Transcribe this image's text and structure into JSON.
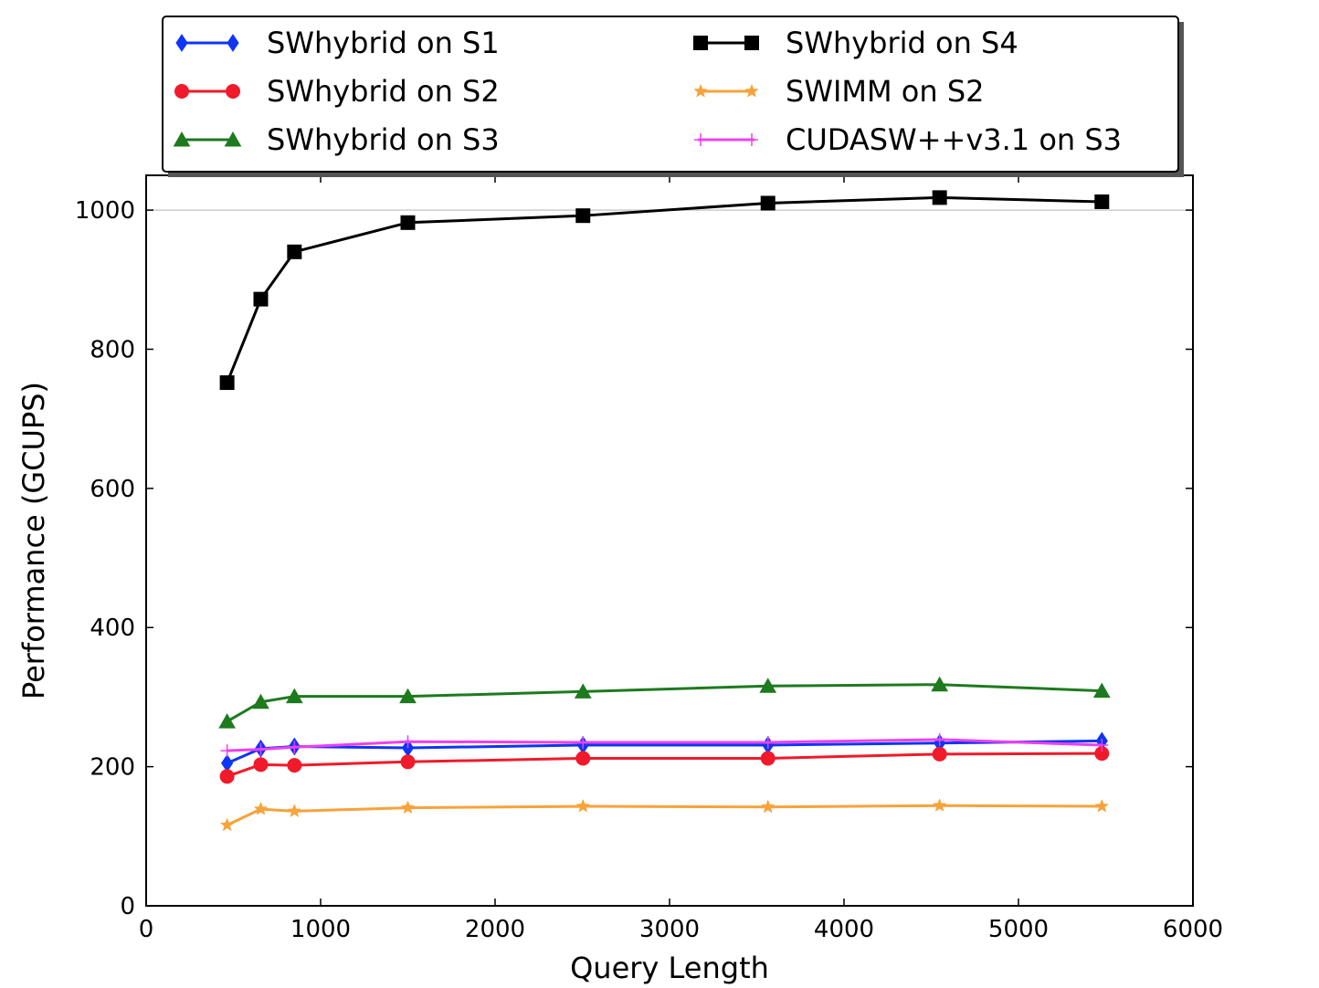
{
  "chart_data": {
    "type": "line",
    "xlabel": "Query Length",
    "ylabel": "Performance (GCUPS)",
    "xlim": [
      0,
      6000
    ],
    "ylim": [
      0,
      1050
    ],
    "xticks": [
      0,
      1000,
      2000,
      3000,
      4000,
      5000,
      6000
    ],
    "yticks": [
      0,
      200,
      400,
      600,
      800,
      1000
    ],
    "reference_line": 1000,
    "legend_position": "top (above plot), two columns",
    "x": [
      464,
      657,
      850,
      1500,
      2504,
      3564,
      4548,
      5478
    ],
    "series": [
      {
        "name": "SWhybrid on S1",
        "color": "#0d35f5",
        "marker": "diamond",
        "values": [
          205,
          226,
          229,
          227,
          231,
          231,
          234,
          237
        ]
      },
      {
        "name": "SWhybrid on S2",
        "color": "#f01a2a",
        "marker": "circle",
        "values": [
          186,
          203,
          202,
          207,
          212,
          212,
          218,
          219
        ]
      },
      {
        "name": "SWhybrid on S3",
        "color": "#1e7a1e",
        "marker": "triangle",
        "values": [
          265,
          293,
          301,
          301,
          308,
          316,
          318,
          309
        ]
      },
      {
        "name": "SWhybrid on S4",
        "color": "#000000",
        "marker": "square",
        "values": [
          752,
          872,
          940,
          982,
          992,
          1010,
          1018,
          1012
        ]
      },
      {
        "name": "SWIMM on S2",
        "color": "#f8a23a",
        "marker": "star",
        "values": [
          116,
          139,
          136,
          141,
          143,
          142,
          144,
          143
        ]
      },
      {
        "name": "CUDASW++v3.1 on S3",
        "color": "#ee40ee",
        "marker": "plus",
        "values": [
          223,
          225,
          228,
          236,
          235,
          235,
          239,
          231
        ]
      }
    ]
  }
}
